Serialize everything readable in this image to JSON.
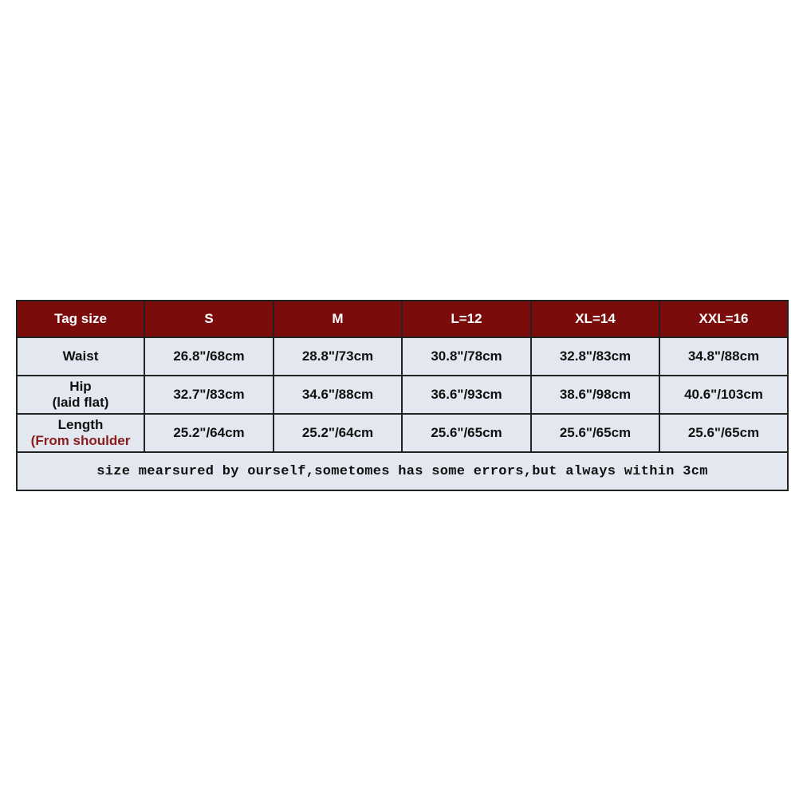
{
  "colors": {
    "header_bg": "#7b0c0c",
    "cell_bg": "#e3e7ef",
    "accent_text": "#8a1c1c"
  },
  "header": [
    "Tag size",
    "S",
    "M",
    "L=12",
    "XL=14",
    "XXL=16"
  ],
  "rows": [
    {
      "label": "Waist",
      "sublabel": "",
      "values": [
        "26.8\"/68cm",
        "28.8\"/73cm",
        "30.8\"/78cm",
        "32.8\"/83cm",
        "34.8\"/88cm"
      ]
    },
    {
      "label": "Hip",
      "sublabel": "(laid flat)",
      "values": [
        "32.7\"/83cm",
        "34.6\"/88cm",
        "36.6\"/93cm",
        "38.6\"/98cm",
        "40.6\"/103cm"
      ]
    },
    {
      "label": "Length",
      "sublabel": "(From shoulder",
      "values": [
        "25.2\"/64cm",
        "25.2\"/64cm",
        "25.6\"/65cm",
        "25.6\"/65cm",
        "25.6\"/65cm"
      ]
    }
  ],
  "note": "size mearsured by ourself,sometomes has some errors,but always within 3cm"
}
